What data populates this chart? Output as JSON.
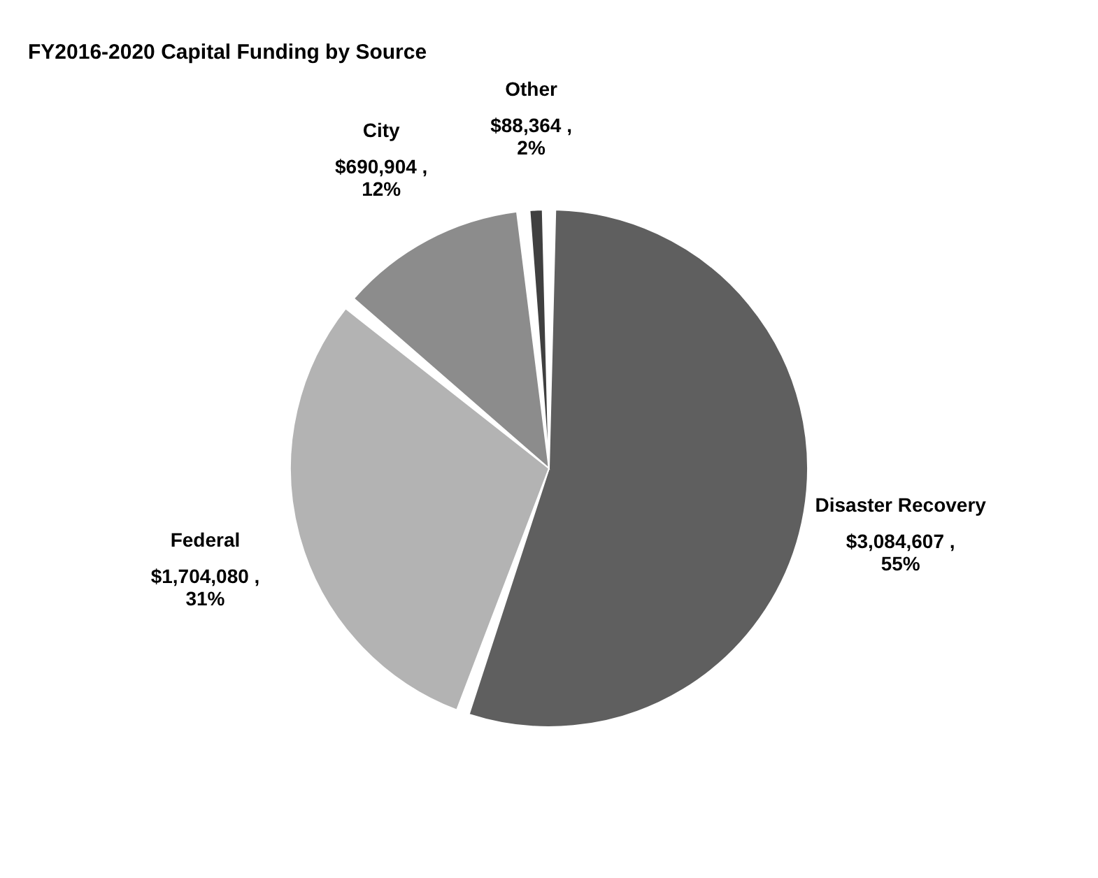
{
  "chart_data": {
    "type": "pie",
    "title": "FY2016-2020 Capital Funding by Source",
    "categories": [
      "Disaster Recovery",
      "Federal",
      "City",
      "Other"
    ],
    "values": [
      3084607,
      1704080,
      690904,
      88364
    ],
    "colors": [
      "#5f5f5f",
      "#b3b3b3",
      "#8c8c8c",
      "#404040"
    ],
    "value_labels": [
      "$3,084,607 , 55%",
      "$1,704,080 , 31%",
      "$690,904 , 12%",
      "$88,364 , 2%"
    ],
    "legend": false
  }
}
